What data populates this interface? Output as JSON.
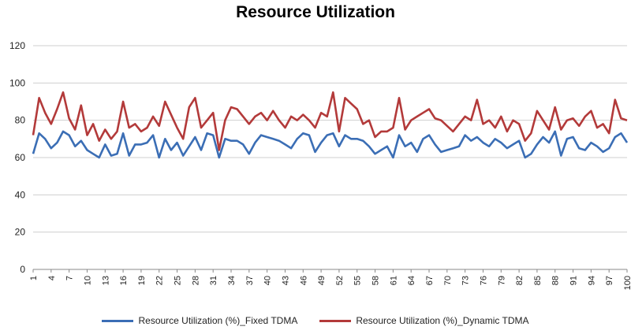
{
  "chart_data": {
    "type": "line",
    "title": "Resource Utilization",
    "xlabel": "",
    "ylabel": "",
    "ylim": [
      0,
      120
    ],
    "yticks": [
      0,
      20,
      40,
      60,
      80,
      100,
      120
    ],
    "x_tick_labels": [
      "1",
      "4",
      "7",
      "10",
      "13",
      "16",
      "19",
      "22",
      "25",
      "28",
      "31",
      "34",
      "37",
      "40",
      "43",
      "46",
      "49",
      "52",
      "55",
      "58",
      "61",
      "64",
      "67",
      "70",
      "73",
      "76",
      "79",
      "82",
      "85",
      "88",
      "91",
      "94",
      "97",
      "100"
    ],
    "grid": true,
    "legend_position": "bottom",
    "x": [
      1,
      2,
      3,
      4,
      5,
      6,
      7,
      8,
      9,
      10,
      11,
      12,
      13,
      14,
      15,
      16,
      17,
      18,
      19,
      20,
      21,
      22,
      23,
      24,
      25,
      26,
      27,
      28,
      29,
      30,
      31,
      32,
      33,
      34,
      35,
      36,
      37,
      38,
      39,
      40,
      41,
      42,
      43,
      44,
      45,
      46,
      47,
      48,
      49,
      50,
      51,
      52,
      53,
      54,
      55,
      56,
      57,
      58,
      59,
      60,
      61,
      62,
      63,
      64,
      65,
      66,
      67,
      68,
      69,
      70,
      71,
      72,
      73,
      74,
      75,
      76,
      77,
      78,
      79,
      80,
      81,
      82,
      83,
      84,
      85,
      86,
      87,
      88,
      89,
      90,
      91,
      92,
      93,
      94,
      95,
      96,
      97,
      98,
      99,
      100
    ],
    "series": [
      {
        "name": "Resource Utilization (%)_Fixed TDMA",
        "color": "#3b6eb5",
        "values": [
          62,
          73,
          70,
          65,
          68,
          74,
          72,
          66,
          69,
          64,
          62,
          60,
          67,
          61,
          62,
          73,
          61,
          67,
          67,
          68,
          72,
          60,
          70,
          64,
          68,
          61,
          66,
          71,
          64,
          73,
          72,
          60,
          70,
          69,
          69,
          67,
          62,
          68,
          72,
          71,
          70,
          69,
          67,
          65,
          70,
          73,
          72,
          63,
          68,
          72,
          73,
          66,
          72,
          70,
          70,
          69,
          66,
          62,
          64,
          66,
          60,
          72,
          66,
          68,
          63,
          70,
          72,
          67,
          63,
          64,
          65,
          66,
          72,
          69,
          71,
          68,
          66,
          70,
          68,
          65,
          67,
          69,
          60,
          62,
          67,
          71,
          68,
          74,
          61,
          70,
          71,
          65,
          64,
          68,
          66,
          63,
          65,
          71,
          73,
          68
        ]
      },
      {
        "name": "Resource Utilization (%)_Dynamic TDMA",
        "color": "#b33a3a",
        "values": [
          72,
          92,
          84,
          78,
          86,
          95,
          81,
          75,
          88,
          72,
          78,
          69,
          75,
          70,
          74,
          90,
          76,
          78,
          74,
          76,
          82,
          77,
          90,
          83,
          76,
          70,
          87,
          92,
          76,
          80,
          84,
          64,
          80,
          87,
          86,
          82,
          78,
          82,
          84,
          80,
          85,
          80,
          76,
          82,
          80,
          83,
          80,
          76,
          84,
          82,
          95,
          74,
          92,
          89,
          86,
          78,
          80,
          71,
          74,
          74,
          76,
          92,
          75,
          80,
          82,
          84,
          86,
          81,
          80,
          77,
          74,
          78,
          82,
          80,
          91,
          78,
          80,
          76,
          82,
          74,
          80,
          78,
          69,
          73,
          85,
          80,
          75,
          87,
          75,
          80,
          81,
          77,
          82,
          85,
          76,
          78,
          73,
          91,
          81,
          80
        ]
      }
    ]
  }
}
